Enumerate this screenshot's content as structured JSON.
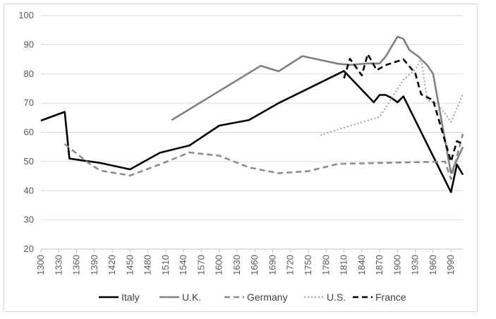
{
  "chart_data": {
    "type": "line",
    "title": "",
    "xlabel": "",
    "ylabel": "",
    "xlim": [
      1300,
      2010
    ],
    "ylim": [
      20,
      100
    ],
    "y_ticks": [
      20,
      30,
      40,
      50,
      60,
      70,
      80,
      90,
      100
    ],
    "x_ticks": [
      1300,
      1330,
      1360,
      1390,
      1420,
      1450,
      1480,
      1510,
      1540,
      1570,
      1600,
      1630,
      1660,
      1690,
      1720,
      1750,
      1780,
      1810,
      1840,
      1870,
      1900,
      1930,
      1960,
      1990
    ],
    "grid": "horizontal",
    "legend_position": "bottom",
    "series": [
      {
        "name": "Italy",
        "color": "#000000",
        "dash": "solid",
        "points": [
          [
            1300,
            64
          ],
          [
            1340,
            67
          ],
          [
            1348,
            51
          ],
          [
            1400,
            49.5
          ],
          [
            1450,
            47.3
          ],
          [
            1500,
            53
          ],
          [
            1550,
            55.5
          ],
          [
            1600,
            62.3
          ],
          [
            1650,
            64.2
          ],
          [
            1700,
            70
          ],
          [
            1810,
            81
          ],
          [
            1860,
            70.3
          ],
          [
            1870,
            72.8
          ],
          [
            1880,
            72.8
          ],
          [
            1890,
            71.8
          ],
          [
            1900,
            70.3
          ],
          [
            1910,
            72.3
          ],
          [
            1990,
            39.5
          ],
          [
            2000,
            49
          ],
          [
            2010,
            45.5
          ]
        ]
      },
      {
        "name": "U.K.",
        "color": "#808080",
        "dash": "solid",
        "points": [
          [
            1520,
            64.2
          ],
          [
            1670,
            82.8
          ],
          [
            1700,
            80.9
          ],
          [
            1740,
            86.1
          ],
          [
            1800,
            83.5
          ],
          [
            1820,
            83.1
          ],
          [
            1850,
            83.6
          ],
          [
            1870,
            83.6
          ],
          [
            1880,
            85.9
          ],
          [
            1900,
            92.8
          ],
          [
            1910,
            92
          ],
          [
            1920,
            88.2
          ],
          [
            1935,
            86
          ],
          [
            1950,
            83
          ],
          [
            1960,
            80
          ],
          [
            1990,
            46
          ],
          [
            2010,
            55
          ]
        ]
      },
      {
        "name": "Germany",
        "color": "#8c8c8c",
        "dash": "dashed",
        "points": [
          [
            1340,
            56
          ],
          [
            1380,
            49.5
          ],
          [
            1400,
            46.9
          ],
          [
            1450,
            45.2
          ],
          [
            1500,
            49
          ],
          [
            1550,
            53.1
          ],
          [
            1600,
            52
          ],
          [
            1650,
            48
          ],
          [
            1700,
            46
          ],
          [
            1750,
            46.7
          ],
          [
            1800,
            49.2
          ],
          [
            1980,
            50
          ],
          [
            1990,
            44
          ],
          [
            2010,
            59.5
          ]
        ]
      },
      {
        "name": "U.S.",
        "color": "#a6a6a6",
        "dash": "dotted",
        "points": [
          [
            1770,
            59
          ],
          [
            1800,
            61
          ],
          [
            1870,
            65.3
          ],
          [
            1890,
            71.6
          ],
          [
            1910,
            78
          ],
          [
            1930,
            81.5
          ],
          [
            1940,
            85
          ],
          [
            1950,
            71
          ],
          [
            1965,
            70
          ],
          [
            1980,
            66.5
          ],
          [
            1990,
            63.5
          ],
          [
            2010,
            73
          ]
        ]
      },
      {
        "name": "France",
        "color": "#000000",
        "dash": "dashed",
        "points": [
          [
            1810,
            78.5
          ],
          [
            1820,
            85.2
          ],
          [
            1840,
            79.5
          ],
          [
            1850,
            86.8
          ],
          [
            1865,
            81.3
          ],
          [
            1880,
            83
          ],
          [
            1910,
            85
          ],
          [
            1930,
            80.2
          ],
          [
            1940,
            73
          ],
          [
            1960,
            71
          ],
          [
            1970,
            64
          ],
          [
            1990,
            50
          ],
          [
            2000,
            57
          ],
          [
            2010,
            56
          ]
        ]
      }
    ]
  }
}
